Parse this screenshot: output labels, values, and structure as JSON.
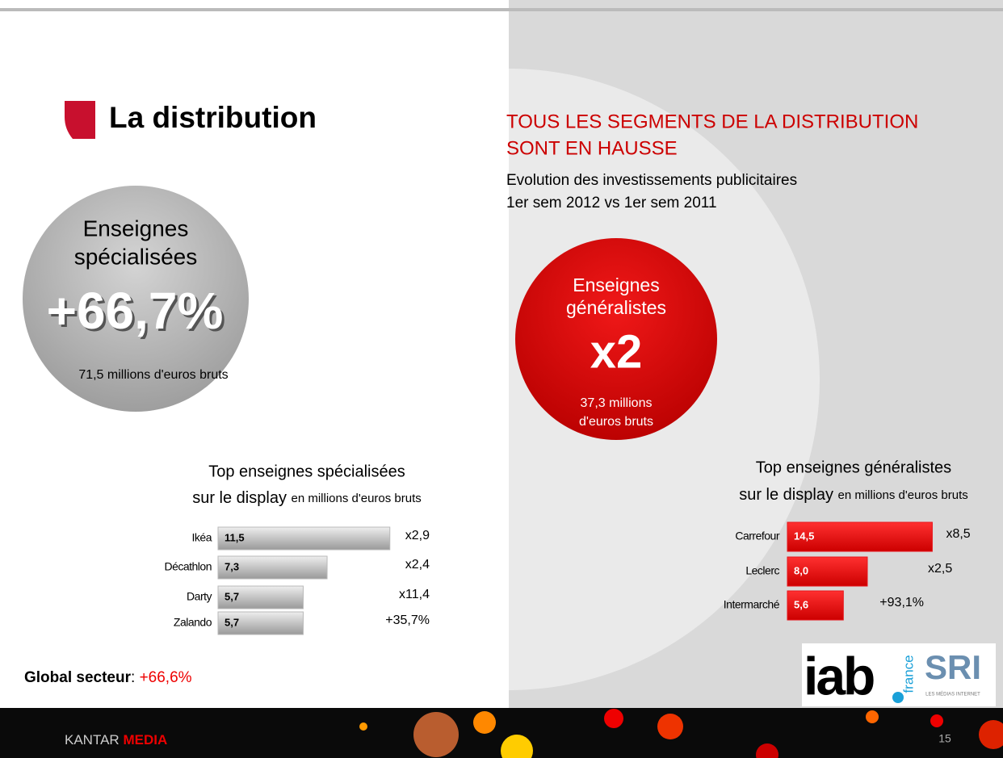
{
  "header": {
    "title": "La distribution"
  },
  "headline": [
    "TOUS LES SEGMENTS DE LA DISTRIBUTION",
    "SONT EN HAUSSE"
  ],
  "subtitle": [
    "Evolution des investissements publicitaires",
    "1er sem 2012 vs 1er sem 2011"
  ],
  "left_bubble": {
    "lines": [
      "Enseignes",
      "spécialisées"
    ],
    "figure": "+66,7%",
    "note": "71,5 millions d'euros bruts"
  },
  "right_bubble": {
    "lines": [
      "Enseignes",
      "généralistes"
    ],
    "figure": "x2",
    "note": [
      "37,3 millions",
      "d'euros bruts"
    ]
  },
  "chart_data": [
    {
      "type": "bar",
      "orientation": "horizontal",
      "title": [
        "Top enseignes spécialisées",
        "sur le display"
      ],
      "unit": "en millions d'euros bruts",
      "categories": [
        "Ikéa",
        "Décathlon",
        "Darty",
        "Zalando"
      ],
      "values": [
        11.5,
        7.3,
        5.7,
        5.7
      ],
      "value_labels": [
        "11,5",
        "7,3",
        "5,7",
        "5,7"
      ],
      "annotations": [
        "x2,9",
        "x2,4",
        "x11,4",
        "+35,7%"
      ],
      "color": "#b8b8b8",
      "xlim": [
        0,
        12
      ]
    },
    {
      "type": "bar",
      "orientation": "horizontal",
      "title": [
        "Top enseignes généralistes",
        "sur le display"
      ],
      "unit": "en millions d'euros bruts",
      "categories": [
        "Carrefour",
        "Leclerc",
        "Intermarché"
      ],
      "values": [
        14.5,
        8.0,
        5.6
      ],
      "value_labels": [
        "14,5",
        "8,0",
        "5,6"
      ],
      "annotations": [
        "x8,5",
        "x2,5",
        "+93,1%"
      ],
      "color": "#e8141b",
      "xlim": [
        0,
        16
      ]
    }
  ],
  "global": {
    "label": "Global secteur",
    "sep": ":",
    "value": "+66,6%"
  },
  "logos": {
    "iab": "iab",
    "france": "france",
    "sri": "SRI",
    "sri_tag": "LES MÉDIAS INTERNET"
  },
  "footer": {
    "brand": "KANTAR",
    "brand2": "MEDIA",
    "page": "15"
  }
}
